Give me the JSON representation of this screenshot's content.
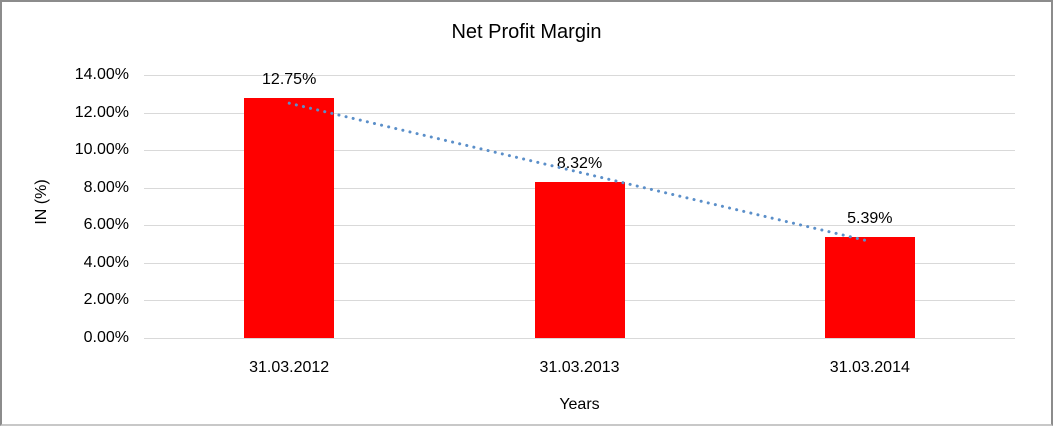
{
  "chart_data": {
    "type": "bar",
    "title": "Net Profit Margin",
    "xlabel": "Years",
    "ylabel": "IN (%)",
    "categories": [
      "31.03.2012",
      "31.03.2013",
      "31.03.2014"
    ],
    "values": [
      12.75,
      8.32,
      5.39
    ],
    "data_labels": [
      "12.75%",
      "8.32%",
      "5.39%"
    ],
    "yticks": [
      "14.00%",
      "12.00%",
      "10.00%",
      "8.00%",
      "6.00%",
      "4.00%",
      "2.00%",
      "0.00%"
    ],
    "ylim": [
      0,
      14
    ],
    "grid": true,
    "legend_position": "none",
    "trendline": {
      "type": "linear",
      "style": "dotted"
    },
    "colors": {
      "bar": "#FF0000",
      "trendline": "#5B8FC9",
      "gridline": "#D9D9D9",
      "text": "#000000",
      "background": "#FFFFFF",
      "frame_border": "#8C8C8C"
    }
  }
}
